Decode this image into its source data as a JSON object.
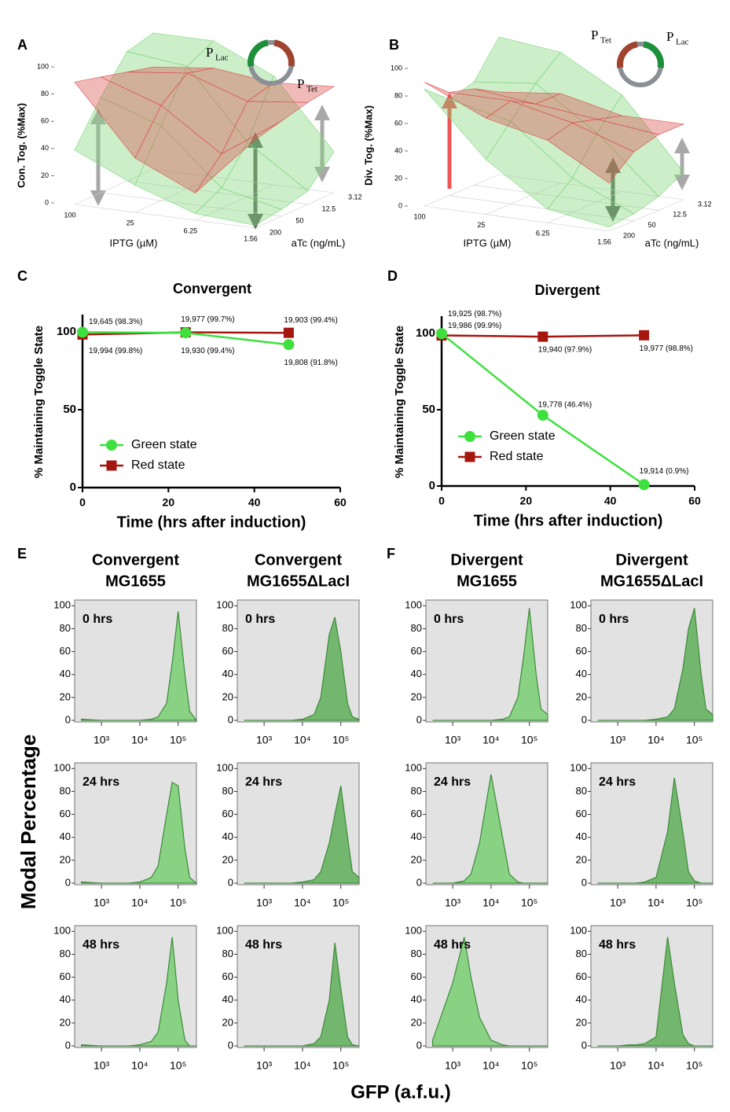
{
  "figure": {
    "ylabel": "Modal Percentage",
    "xlabel": "GFP (a.f.u.)"
  },
  "chart_data": [
    {
      "type": "surface3d",
      "panel": "A",
      "promoter_labels": [
        [
          "P",
          "Lac"
        ],
        [
          "P",
          "Tet"
        ]
      ],
      "zlabel": "Con. Tog. (%Max)",
      "xlabel": "IPTG (µM)",
      "ylabel": "aTc (ng/mL)",
      "x_categories": [
        "100",
        "25",
        "6.25",
        "1.56"
      ],
      "y_categories": [
        "200",
        "50",
        "12.5",
        "3.12"
      ],
      "zlim": [
        0,
        100
      ],
      "zticks": [
        0,
        20,
        40,
        60,
        80,
        100
      ],
      "series": [
        {
          "color": "#7fd67a",
          "values": [
            [
              40,
              70,
              95,
              100
            ],
            [
              20,
              55,
              90,
              100
            ],
            [
              5,
              15,
              40,
              80
            ],
            [
              2,
              5,
              10,
              30
            ]
          ]
        },
        {
          "color": "#d9534f",
          "values": [
            [
              90,
              85,
              80,
              75
            ],
            [
              40,
              70,
              85,
              80
            ],
            [
              20,
              40,
              70,
              75
            ],
            [
              65,
              70,
              75,
              78
            ]
          ]
        }
      ]
    },
    {
      "type": "surface3d",
      "panel": "B",
      "promoter_labels": [
        [
          "P",
          "Tet"
        ],
        [
          "P",
          "Lac"
        ]
      ],
      "zlabel": "Div. Tog. (%Max)",
      "xlabel": "IPTG (µM)",
      "ylabel": "aTc (ng/mL)",
      "x_categories": [
        "100",
        "25",
        "6.25",
        "1.56"
      ],
      "y_categories": [
        "200",
        "50",
        "12.5",
        "3.12"
      ],
      "zlim": [
        0,
        100
      ],
      "zticks": [
        0,
        20,
        40,
        60,
        80,
        100
      ],
      "series": [
        {
          "color": "#7fd67a",
          "values": [
            [
              85,
              70,
              75,
              100
            ],
            [
              40,
              60,
              80,
              95
            ],
            [
              10,
              25,
              50,
              70
            ],
            [
              3,
              5,
              10,
              20
            ]
          ]
        },
        {
          "color": "#d9534f",
          "values": [
            [
              90,
              75,
              70,
              60
            ],
            [
              70,
              75,
              65,
              65
            ],
            [
              60,
              65,
              60,
              55
            ],
            [
              35,
              50,
              55,
              55
            ]
          ]
        }
      ]
    },
    {
      "type": "line",
      "panel": "C",
      "title": "Convergent",
      "xlabel": "Time (hrs after induction)",
      "ylabel": "% Maintaining Toggle State",
      "x": [
        0,
        24,
        48
      ],
      "xlim": [
        0,
        60
      ],
      "xticks": [
        0,
        20,
        40,
        60
      ],
      "ylim": [
        0,
        100
      ],
      "yticks": [
        0,
        50,
        100
      ],
      "legend": "lower left",
      "series": [
        {
          "name": "Green state",
          "color": "#3ee03e",
          "marker": "circle",
          "values": [
            99.8,
            99.4,
            91.8
          ],
          "value_labels": [
            "19,994 (99.8%)",
            "19,930 (99.4%)",
            "19,808 (91.8%)"
          ]
        },
        {
          "name": "Red state",
          "color": "#a5160f",
          "marker": "square",
          "values": [
            98.3,
            99.7,
            99.4
          ],
          "value_labels": [
            "19,645 (98.3%)",
            "19,977 (99.7%)",
            "19,903 (99.4%)"
          ]
        }
      ]
    },
    {
      "type": "line",
      "panel": "D",
      "title": "Divergent",
      "xlabel": "Time (hrs after induction)",
      "ylabel": "% Maintaining Toggle State",
      "x": [
        0,
        24,
        48
      ],
      "xlim": [
        0,
        60
      ],
      "xticks": [
        0,
        20,
        40,
        60
      ],
      "ylim": [
        0,
        100
      ],
      "yticks": [
        0,
        50,
        100
      ],
      "legend": "lower left",
      "series": [
        {
          "name": "Green state",
          "color": "#3ee03e",
          "marker": "circle",
          "values": [
            99.9,
            46.4,
            0.9
          ],
          "value_labels": [
            "19,986 (99.9%)",
            "19,778 (46.4%)",
            "19,914 (0.9%)"
          ]
        },
        {
          "name": "Red state",
          "color": "#a5160f",
          "marker": "square",
          "values": [
            98.7,
            97.9,
            98.8
          ],
          "value_labels": [
            "19,925 (98.7%)",
            "19,940 (97.9%)",
            "19,977 (98.8%)"
          ]
        }
      ]
    },
    {
      "type": "area",
      "panel": "E",
      "title": [
        "Convergent",
        "MG1655"
      ],
      "annotation": "0 hrs",
      "xscale": "log",
      "xlim": [
        200,
        300000
      ],
      "xticks": [
        {
          "value": 1000,
          "label": "10³"
        },
        {
          "value": 10000,
          "label": "10⁴"
        },
        {
          "value": 100000,
          "label": "10⁵"
        }
      ],
      "ylim": [
        0,
        105
      ],
      "yticks": [
        0,
        20,
        40,
        60,
        80,
        100
      ],
      "color": "#7fd07a",
      "x": [
        300,
        1000,
        2000,
        3000,
        5000,
        10000,
        20000,
        30000,
        50000,
        70000,
        100000,
        150000,
        200000,
        300000
      ],
      "values": [
        1,
        0,
        0,
        0,
        0,
        0,
        1,
        3,
        15,
        50,
        95,
        40,
        8,
        0
      ]
    },
    {
      "type": "area",
      "annotation": "24 hrs",
      "xscale": "log",
      "xlim": [
        200,
        300000
      ],
      "xticks": [
        {
          "value": 1000,
          "label": "10³"
        },
        {
          "value": 10000,
          "label": "10⁴"
        },
        {
          "value": 100000,
          "label": "10⁵"
        }
      ],
      "ylim": [
        0,
        105
      ],
      "yticks": [
        0,
        20,
        40,
        60,
        80,
        100
      ],
      "color": "#7fd07a",
      "x": [
        300,
        1000,
        2000,
        3000,
        5000,
        10000,
        20000,
        30000,
        50000,
        70000,
        100000,
        150000,
        200000,
        300000
      ],
      "values": [
        1,
        0,
        0,
        0,
        0,
        1,
        5,
        15,
        60,
        88,
        85,
        30,
        5,
        0
      ]
    },
    {
      "type": "area",
      "annotation": "48 hrs",
      "xscale": "log",
      "xlim": [
        200,
        300000
      ],
      "xticks": [
        {
          "value": 1000,
          "label": "10³"
        },
        {
          "value": 10000,
          "label": "10⁴"
        },
        {
          "value": 100000,
          "label": "10⁵"
        }
      ],
      "ylim": [
        0,
        105
      ],
      "yticks": [
        0,
        20,
        40,
        60,
        80,
        100
      ],
      "color": "#7fd07a",
      "x": [
        300,
        1000,
        2000,
        3000,
        5000,
        10000,
        20000,
        30000,
        50000,
        70000,
        100000,
        150000,
        200000,
        300000
      ],
      "values": [
        1,
        0,
        0,
        0,
        0,
        1,
        4,
        12,
        55,
        95,
        40,
        5,
        0,
        0
      ]
    },
    {
      "type": "area",
      "title": [
        "Convergent",
        "MG1655ΔLacI"
      ],
      "annotation": "0 hrs",
      "xscale": "log",
      "xlim": [
        200,
        300000
      ],
      "xticks": [
        {
          "value": 1000,
          "label": "10³"
        },
        {
          "value": 10000,
          "label": "10⁴"
        },
        {
          "value": 100000,
          "label": "10⁵"
        }
      ],
      "ylim": [
        0,
        105
      ],
      "yticks": [
        0,
        20,
        40,
        60,
        80,
        100
      ],
      "color": "#66b360",
      "x": [
        300,
        1000,
        2000,
        3000,
        5000,
        10000,
        20000,
        30000,
        50000,
        70000,
        100000,
        150000,
        200000,
        300000
      ],
      "values": [
        0,
        0,
        0,
        0,
        0,
        1,
        5,
        20,
        75,
        90,
        60,
        15,
        3,
        1
      ]
    },
    {
      "type": "area",
      "annotation": "24 hrs",
      "xscale": "log",
      "xlim": [
        200,
        300000
      ],
      "xticks": [
        {
          "value": 1000,
          "label": "10³"
        },
        {
          "value": 10000,
          "label": "10⁴"
        },
        {
          "value": 100000,
          "label": "10⁵"
        }
      ],
      "ylim": [
        0,
        105
      ],
      "yticks": [
        0,
        20,
        40,
        60,
        80,
        100
      ],
      "color": "#66b360",
      "x": [
        300,
        1000,
        2000,
        3000,
        5000,
        10000,
        20000,
        30000,
        50000,
        70000,
        100000,
        150000,
        200000,
        300000
      ],
      "values": [
        0,
        0,
        0,
        0,
        0,
        1,
        3,
        10,
        35,
        60,
        85,
        40,
        10,
        5
      ]
    },
    {
      "type": "area",
      "annotation": "48 hrs",
      "xscale": "log",
      "xlim": [
        200,
        300000
      ],
      "xticks": [
        {
          "value": 1000,
          "label": "10³"
        },
        {
          "value": 10000,
          "label": "10⁴"
        },
        {
          "value": 100000,
          "label": "10⁵"
        }
      ],
      "ylim": [
        0,
        105
      ],
      "yticks": [
        0,
        20,
        40,
        60,
        80,
        100
      ],
      "color": "#66b360",
      "x": [
        300,
        1000,
        2000,
        3000,
        5000,
        10000,
        20000,
        30000,
        50000,
        70000,
        100000,
        150000,
        200000,
        300000
      ],
      "values": [
        0,
        0,
        0,
        0,
        0,
        0,
        2,
        8,
        40,
        90,
        50,
        8,
        1,
        0
      ]
    },
    {
      "type": "area",
      "panel": "F",
      "title": [
        "Divergent",
        "MG1655"
      ],
      "annotation": "0 hrs",
      "xscale": "log",
      "xlim": [
        200,
        300000
      ],
      "xticks": [
        {
          "value": 1000,
          "label": "10³"
        },
        {
          "value": 10000,
          "label": "10⁴"
        },
        {
          "value": 100000,
          "label": "10⁵"
        }
      ],
      "ylim": [
        0,
        105
      ],
      "yticks": [
        0,
        20,
        40,
        60,
        80,
        100
      ],
      "color": "#7fd07a",
      "x": [
        300,
        1000,
        2000,
        3000,
        5000,
        10000,
        20000,
        30000,
        50000,
        70000,
        100000,
        150000,
        200000,
        300000
      ],
      "values": [
        0,
        0,
        0,
        0,
        0,
        0,
        1,
        3,
        20,
        55,
        98,
        40,
        10,
        5
      ]
    },
    {
      "type": "area",
      "annotation": "24 hrs",
      "xscale": "log",
      "xlim": [
        200,
        300000
      ],
      "xticks": [
        {
          "value": 1000,
          "label": "10³"
        },
        {
          "value": 10000,
          "label": "10⁴"
        },
        {
          "value": 100000,
          "label": "10⁵"
        }
      ],
      "ylim": [
        0,
        105
      ],
      "yticks": [
        0,
        20,
        40,
        60,
        80,
        100
      ],
      "color": "#7fd07a",
      "x": [
        300,
        1000,
        2000,
        3000,
        5000,
        10000,
        20000,
        30000,
        50000,
        70000,
        100000,
        150000,
        200000,
        300000
      ],
      "values": [
        0,
        0,
        2,
        8,
        35,
        95,
        40,
        8,
        1,
        0,
        0,
        0,
        0,
        0
      ]
    },
    {
      "type": "area",
      "annotation": "48 hrs",
      "xscale": "log",
      "xlim": [
        200,
        300000
      ],
      "xticks": [
        {
          "value": 1000,
          "label": "10³"
        },
        {
          "value": 10000,
          "label": "10⁴"
        },
        {
          "value": 100000,
          "label": "10⁵"
        }
      ],
      "ylim": [
        0,
        105
      ],
      "yticks": [
        0,
        20,
        40,
        60,
        80,
        100
      ],
      "color": "#7fd07a",
      "x": [
        300,
        1000,
        2000,
        3000,
        5000,
        10000,
        20000,
        30000,
        50000,
        70000,
        100000,
        150000,
        200000,
        300000
      ],
      "values": [
        5,
        55,
        95,
        60,
        25,
        5,
        1,
        0,
        0,
        0,
        0,
        0,
        0,
        0
      ]
    },
    {
      "type": "area",
      "title": [
        "Divergent",
        "MG1655ΔLacI"
      ],
      "annotation": "0 hrs",
      "xscale": "log",
      "xlim": [
        200,
        300000
      ],
      "xticks": [
        {
          "value": 1000,
          "label": "10³"
        },
        {
          "value": 10000,
          "label": "10⁴"
        },
        {
          "value": 100000,
          "label": "10⁵"
        }
      ],
      "ylim": [
        0,
        105
      ],
      "yticks": [
        0,
        20,
        40,
        60,
        80,
        100
      ],
      "color": "#66b360",
      "x": [
        300,
        1000,
        2000,
        3000,
        5000,
        10000,
        20000,
        30000,
        50000,
        70000,
        100000,
        150000,
        200000,
        300000
      ],
      "values": [
        0,
        0,
        0,
        0,
        0,
        1,
        3,
        10,
        45,
        80,
        98,
        40,
        10,
        5
      ]
    },
    {
      "type": "area",
      "annotation": "24 hrs",
      "xscale": "log",
      "xlim": [
        200,
        300000
      ],
      "xticks": [
        {
          "value": 1000,
          "label": "10³"
        },
        {
          "value": 10000,
          "label": "10⁴"
        },
        {
          "value": 100000,
          "label": "10⁵"
        }
      ],
      "ylim": [
        0,
        105
      ],
      "yticks": [
        0,
        20,
        40,
        60,
        80,
        100
      ],
      "color": "#66b360",
      "x": [
        300,
        1000,
        2000,
        3000,
        5000,
        10000,
        20000,
        30000,
        50000,
        70000,
        100000,
        150000,
        200000,
        300000
      ],
      "values": [
        0,
        0,
        0,
        0,
        1,
        5,
        45,
        92,
        45,
        10,
        2,
        0,
        0,
        0
      ]
    },
    {
      "type": "area",
      "annotation": "48 hrs",
      "xscale": "log",
      "xlim": [
        200,
        300000
      ],
      "xticks": [
        {
          "value": 1000,
          "label": "10³"
        },
        {
          "value": 10000,
          "label": "10⁴"
        },
        {
          "value": 100000,
          "label": "10⁵"
        }
      ],
      "ylim": [
        0,
        105
      ],
      "yticks": [
        0,
        20,
        40,
        60,
        80,
        100
      ],
      "color": "#66b360",
      "x": [
        300,
        1000,
        2000,
        3000,
        5000,
        10000,
        20000,
        30000,
        50000,
        70000,
        100000,
        150000,
        200000,
        300000
      ],
      "values": [
        0,
        0,
        1,
        1,
        2,
        8,
        95,
        55,
        10,
        2,
        0,
        0,
        0,
        0
      ]
    }
  ]
}
